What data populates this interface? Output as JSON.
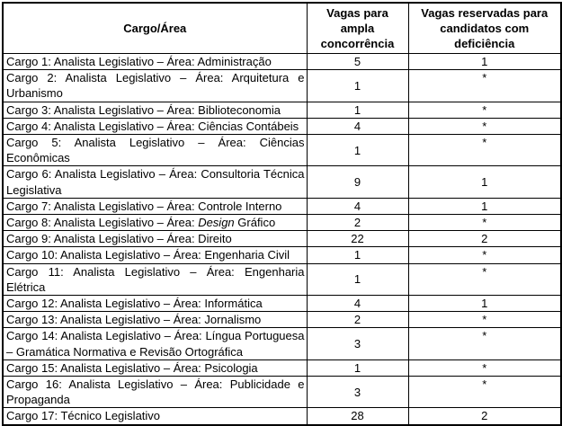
{
  "table": {
    "columns": [
      {
        "id": "cargo_area",
        "lines": [
          "Cargo/Área"
        ]
      },
      {
        "id": "vagas_ampla",
        "lines": [
          "Vagas para",
          "ampla",
          "concorrência"
        ]
      },
      {
        "id": "vagas_deficiencia",
        "lines": [
          "Vagas reservadas para",
          "candidatos com",
          "deficiência"
        ]
      }
    ],
    "rows": [
      {
        "cargo": [
          "Cargo 1: Analista Legislativo – Área: Administração"
        ],
        "ampla": "5",
        "deficiencia": "1"
      },
      {
        "cargo": [
          "Cargo 2: Analista Legislativo – Área: Arquitetura e Urbanismo"
        ],
        "ampla": "1",
        "deficiencia": "*"
      },
      {
        "cargo": [
          "Cargo 3: Analista Legislativo – Área: Biblioteconomia"
        ],
        "ampla": "1",
        "deficiencia": "*"
      },
      {
        "cargo": [
          "Cargo 4: Analista Legislativo – Área: Ciências Contábeis"
        ],
        "ampla": "4",
        "deficiencia": "*"
      },
      {
        "cargo": [
          "Cargo 5: Analista Legislativo – Área: Ciências Econômicas"
        ],
        "ampla": "1",
        "deficiencia": "*"
      },
      {
        "cargo": [
          "Cargo 6: Analista Legislativo – Área: Consultoria Técnica Legislativa"
        ],
        "ampla": "9",
        "deficiencia": "1"
      },
      {
        "cargo": [
          "Cargo 7: Analista Legislativo – Área: Controle Interno"
        ],
        "ampla": "4",
        "deficiencia": "1"
      },
      {
        "cargo": [
          "Cargo 8: Analista Legislativo – Área: ",
          {
            "italic": "Design"
          },
          " Gráfico"
        ],
        "ampla": "2",
        "deficiencia": "*"
      },
      {
        "cargo": [
          "Cargo 9: Analista Legislativo – Área: Direito"
        ],
        "ampla": "22",
        "deficiencia": "2"
      },
      {
        "cargo": [
          "Cargo 10: Analista Legislativo – Área: Engenharia Civil"
        ],
        "ampla": "1",
        "deficiencia": "*"
      },
      {
        "cargo": [
          "Cargo 11: Analista Legislativo – Área: Engenharia Elétrica"
        ],
        "ampla": "1",
        "deficiencia": "*"
      },
      {
        "cargo": [
          "Cargo 12: Analista Legislativo – Área: Informática"
        ],
        "ampla": "4",
        "deficiencia": "1"
      },
      {
        "cargo": [
          "Cargo 13: Analista Legislativo – Área: Jornalismo"
        ],
        "ampla": "2",
        "deficiencia": "*"
      },
      {
        "cargo": [
          "Cargo 14: Analista Legislativo – Área: Língua Portuguesa – Gramática Normativa e Revisão Ortográfica"
        ],
        "ampla": "3",
        "deficiencia": "*"
      },
      {
        "cargo": [
          "Cargo 15: Analista Legislativo – Área: Psicologia"
        ],
        "ampla": "1",
        "deficiencia": "*"
      },
      {
        "cargo": [
          "Cargo 16: Analista Legislativo – Área: Publicidade e Propaganda"
        ],
        "ampla": "3",
        "deficiencia": "*"
      },
      {
        "cargo": [
          "Cargo 17: Técnico Legislativo"
        ],
        "ampla": "28",
        "deficiencia": "2"
      }
    ],
    "colors": {
      "border": "#000000",
      "text": "#000000",
      "background": "#ffffff"
    }
  }
}
